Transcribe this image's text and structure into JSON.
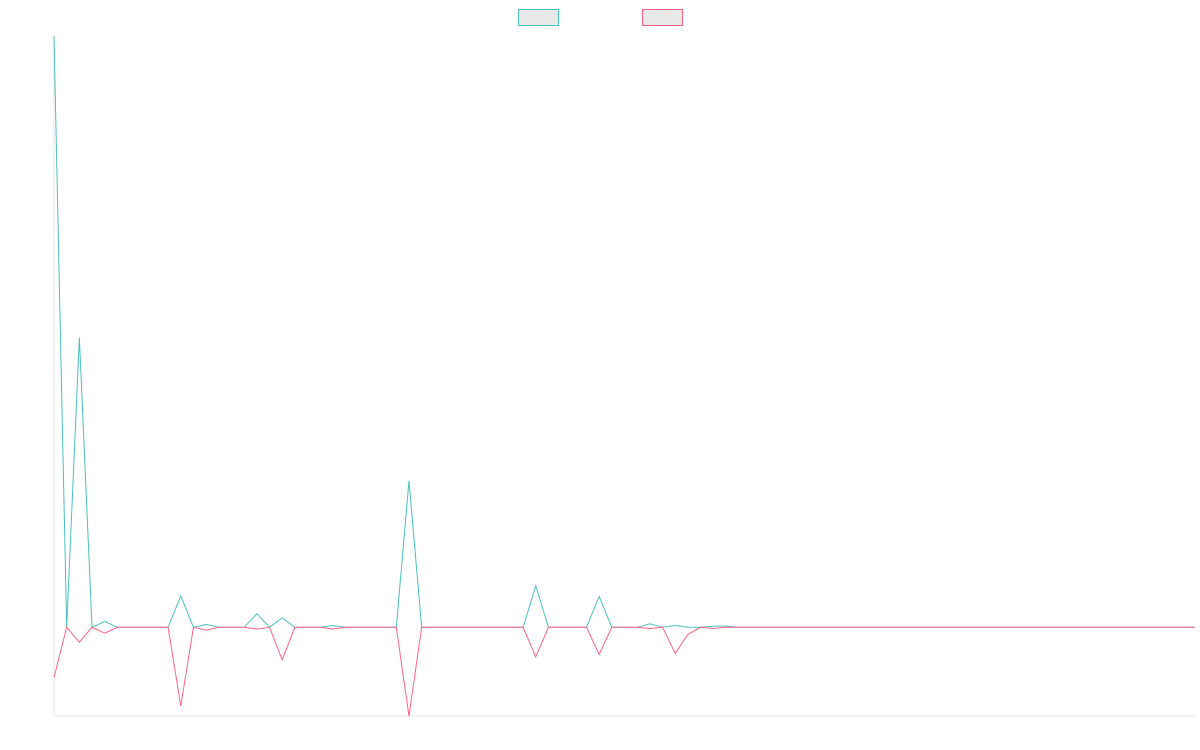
{
  "chart_data": {
    "type": "line",
    "title": "",
    "xlabel": "",
    "ylabel": "",
    "grid": false,
    "legend_position": "top-center",
    "x": [
      0,
      1,
      2,
      3,
      4,
      5,
      6,
      7,
      8,
      9,
      10,
      11,
      12,
      13,
      14,
      15,
      16,
      17,
      18,
      19,
      20,
      21,
      22,
      23,
      24,
      25,
      26,
      27,
      28,
      29,
      30,
      31,
      32,
      33,
      34,
      35,
      36,
      37,
      38,
      39,
      40,
      41,
      42,
      43,
      44,
      45,
      46,
      47,
      48,
      49,
      50,
      51,
      52,
      53,
      54,
      55,
      56,
      57,
      58,
      59,
      60,
      61,
      62,
      63,
      64,
      65,
      66,
      67,
      68,
      69,
      70,
      71,
      72,
      73,
      74,
      75,
      76,
      77,
      78,
      79,
      80,
      81,
      82,
      83,
      84,
      85,
      86,
      87,
      88,
      89,
      90
    ],
    "ylim": [
      -15,
      100
    ],
    "series": [
      {
        "name": "",
        "color": "#4bc0c0",
        "fill": "#e8e8e8",
        "values": [
          100,
          0,
          49,
          0,
          1,
          0,
          0,
          0,
          0,
          0,
          5.3,
          0,
          0.5,
          0,
          0,
          0,
          2.3,
          0,
          1.6,
          0,
          0,
          0,
          0.3,
          0,
          0,
          0,
          0,
          0,
          24.8,
          0,
          0,
          0,
          0,
          0,
          0,
          0,
          0,
          0,
          7,
          0,
          0,
          0,
          0,
          5.2,
          0,
          0,
          0,
          0.6,
          0,
          0.3,
          0,
          0,
          0.2,
          0.2,
          0,
          0,
          0,
          0,
          0,
          0,
          0,
          0,
          0,
          0,
          0,
          0,
          0,
          0,
          0,
          0,
          0,
          0,
          0,
          0,
          0,
          0,
          0,
          0,
          0,
          0,
          0,
          0,
          0,
          0,
          0,
          0,
          0,
          0,
          0,
          0,
          0
        ]
      },
      {
        "name": "",
        "color": "#ff6384",
        "fill": "#e8e8e8",
        "values": [
          -8.5,
          0,
          -2.5,
          0,
          -1,
          0,
          0,
          0,
          0,
          0,
          -13.3,
          0,
          -0.5,
          0,
          0,
          0,
          -0.3,
          0,
          -5.5,
          0,
          0,
          0,
          -0.3,
          0,
          0,
          0,
          0,
          0,
          -15,
          0,
          0,
          0,
          0,
          0,
          0,
          0,
          0,
          0,
          -5,
          0,
          0,
          0,
          0,
          -4.6,
          0,
          0,
          0,
          -0.2,
          0,
          -4.4,
          -1.2,
          0,
          -0.2,
          0,
          0,
          0,
          0,
          0,
          0,
          0,
          0,
          0,
          0,
          0,
          0,
          0,
          0,
          0,
          0,
          0,
          0,
          0,
          0,
          0,
          0,
          0,
          0,
          0,
          0,
          0,
          0,
          0,
          0,
          0,
          0,
          0,
          0,
          0,
          0,
          0,
          0
        ]
      }
    ]
  }
}
